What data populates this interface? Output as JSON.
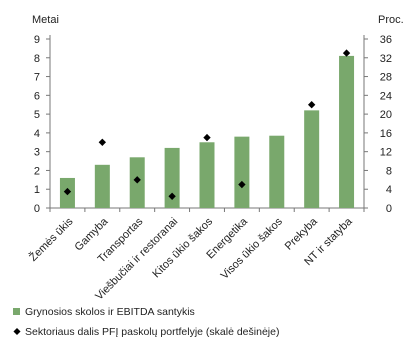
{
  "chart_data": {
    "type": "bar",
    "categories": [
      "Žemės ūkis",
      "Gamyba",
      "Transportas",
      "Viešbučiai ir restoranai",
      "Kitos ūkio šakos",
      "Energetika",
      "Visos ūkio šakos",
      "Prekyba",
      "NT ir statyba"
    ],
    "series": [
      {
        "name": "Grynosios skolos ir EBITDA santykis",
        "type": "bar",
        "axis": "left",
        "color": "#79a86c",
        "values": [
          1.6,
          2.3,
          2.7,
          3.2,
          3.5,
          3.8,
          3.85,
          5.2,
          8.1
        ]
      },
      {
        "name": "Sektoriaus dalis PFĮ paskolų portfelyje (skalė dešinėje)",
        "type": "scatter",
        "axis": "right",
        "color": "#000000",
        "values": [
          3.5,
          14,
          6,
          2.5,
          15,
          5,
          null,
          22,
          33
        ]
      }
    ],
    "ylabel_left": "Metai",
    "ylabel_right": "Proc.",
    "ylim_left": [
      0,
      9
    ],
    "yticks_left": [
      0,
      1,
      2,
      3,
      4,
      5,
      6,
      7,
      8,
      9
    ],
    "ylim_right": [
      0,
      36
    ],
    "yticks_right": [
      0,
      4,
      8,
      12,
      16,
      20,
      24,
      28,
      32,
      36
    ],
    "grid": false,
    "legend": "bottom"
  }
}
